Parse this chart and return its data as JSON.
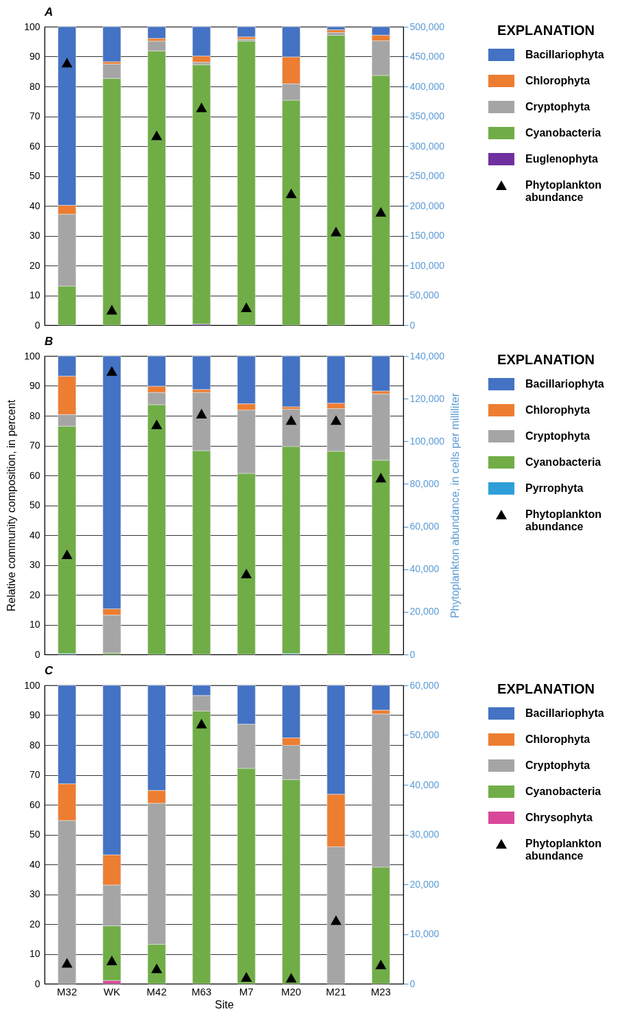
{
  "chart_data": [
    {
      "type": "bar",
      "stacked": true,
      "title": "A",
      "legend_title": "EXPLANATION",
      "legend": "right",
      "grid": "y",
      "tick_labels": "y",
      "marker": "triangle",
      "categories": [
        null,
        null,
        null,
        null,
        null,
        null,
        null,
        null
      ],
      "series": [
        {
          "name": "Euglenophyta",
          "color": "#7030a0",
          "values": [
            null,
            null,
            null,
            0.4,
            null,
            null,
            null,
            null
          ]
        },
        {
          "name": "Cyanobacteria",
          "color": "#70ad47",
          "values": [
            13.1,
            82.7,
            91.9,
            86.9,
            95.2,
            75.4,
            97.1,
            83.7
          ]
        },
        {
          "name": "Cryptophyta",
          "color": "#a5a5a5",
          "values": [
            24.1,
            4.8,
            3.3,
            0.8,
            0.6,
            5.5,
            1.0,
            11.6
          ]
        },
        {
          "name": "Chlorophyta",
          "color": "#ed7d31",
          "values": [
            3.0,
            0.8,
            0.9,
            2.1,
            0.8,
            9.0,
            0.9,
            1.9
          ]
        },
        {
          "name": "Bacillariophyta",
          "color": "#4472c4",
          "values": [
            59.8,
            11.7,
            3.9,
            9.8,
            3.4,
            10.1,
            1.0,
            2.8
          ]
        },
        {
          "name": "Phytoplankton abundance",
          "type": "scatter",
          "axis": "y2",
          "color": "#000000",
          "values": [
            440000,
            26000,
            318000,
            365000,
            30000,
            221000,
            157000,
            190000
          ]
        }
      ],
      "ylim": [
        0,
        100
      ],
      "yticks": [
        0,
        10,
        20,
        30,
        40,
        50,
        60,
        70,
        80,
        90,
        100
      ],
      "y2lim": [
        0,
        500000
      ],
      "y2ticks": [
        {
          "value": 0,
          "label": "0"
        },
        {
          "value": 50000,
          "label": "50,000"
        },
        {
          "value": 100000,
          "label": "100,000"
        },
        {
          "value": 150000,
          "label": "150,000"
        },
        {
          "value": 200000,
          "label": "200,000"
        },
        {
          "value": 250000,
          "label": "250,000"
        },
        {
          "value": 300000,
          "label": "300,000"
        },
        {
          "value": 350000,
          "label": "350,000"
        },
        {
          "value": 400000,
          "label": "400,000"
        },
        {
          "value": 450000,
          "label": "450,000"
        },
        {
          "value": 500000,
          "label": "500,000"
        }
      ]
    },
    {
      "type": "bar",
      "stacked": true,
      "title": "B",
      "legend_title": "EXPLANATION",
      "legend": "right",
      "grid": "y",
      "tick_labels": "y",
      "marker": "triangle",
      "ylabel": "Relative community composition, in percent",
      "y2label": "Phytoplankton abundance, in cells per milliliter",
      "categories": [
        null,
        null,
        null,
        null,
        null,
        null,
        null,
        null
      ],
      "series": [
        {
          "name": "Pyrrophyta",
          "color": "#2e9fd9",
          "values": [
            0.3,
            null,
            null,
            null,
            null,
            0.3,
            null,
            null
          ]
        },
        {
          "name": "Cyanobacteria",
          "color": "#70ad47",
          "values": [
            76.2,
            0.5,
            83.7,
            68.3,
            60.7,
            69.4,
            68.1,
            65.1
          ]
        },
        {
          "name": "Cryptophyta",
          "color": "#a5a5a5",
          "values": [
            3.9,
            12.7,
            4.1,
            19.5,
            21.2,
            12.5,
            14.3,
            22.2
          ]
        },
        {
          "name": "Chlorophyta",
          "color": "#ed7d31",
          "values": [
            12.9,
            2.1,
            2.1,
            1.0,
            2.1,
            0.8,
            1.8,
            1.0
          ]
        },
        {
          "name": "Bacillariophyta",
          "color": "#4472c4",
          "values": [
            6.7,
            84.7,
            10.1,
            11.2,
            16.0,
            17.0,
            15.8,
            11.7
          ]
        },
        {
          "name": "Phytoplankton abundance",
          "type": "scatter",
          "axis": "y2",
          "color": "#000000",
          "values": [
            47000,
            133000,
            108000,
            113000,
            38000,
            110000,
            110000,
            83000
          ]
        }
      ],
      "ylim": [
        0,
        100
      ],
      "yticks": [
        0,
        10,
        20,
        30,
        40,
        50,
        60,
        70,
        80,
        90,
        100
      ],
      "y2lim": [
        0,
        140000
      ],
      "y2ticks": [
        {
          "value": 0,
          "label": "0"
        },
        {
          "value": 20000,
          "label": "20,000"
        },
        {
          "value": 40000,
          "label": "40,000"
        },
        {
          "value": 60000,
          "label": "60,000"
        },
        {
          "value": 80000,
          "label": "80,000"
        },
        {
          "value": 100000,
          "label": "100,000"
        },
        {
          "value": 120000,
          "label": "120,000"
        },
        {
          "value": 140000,
          "label": "140,000"
        }
      ]
    },
    {
      "type": "bar",
      "stacked": true,
      "title": "C",
      "legend_title": "EXPLANATION",
      "legend": "right",
      "grid": "y",
      "marker": "triangle",
      "xlabel": "Site",
      "categories": [
        "M32",
        "WK",
        "M42",
        "M63",
        "M7",
        "M20",
        "M21",
        "M23"
      ],
      "series": [
        {
          "name": "Chrysophyta",
          "color": "#d9479b",
          "values": [
            null,
            1.1,
            null,
            null,
            null,
            null,
            null,
            null
          ]
        },
        {
          "name": "Cyanobacteria",
          "color": "#70ad47",
          "values": [
            null,
            18.3,
            13.2,
            91.4,
            72.2,
            68.4,
            null,
            39.1
          ]
        },
        {
          "name": "Cryptophyta",
          "color": "#a5a5a5",
          "values": [
            54.7,
            13.7,
            47.3,
            5.2,
            14.8,
            11.5,
            45.9,
            51.3
          ]
        },
        {
          "name": "Chlorophyta",
          "color": "#ed7d31",
          "values": [
            12.3,
            10.1,
            4.3,
            null,
            null,
            2.5,
            17.6,
            1.3
          ]
        },
        {
          "name": "Bacillariophyta",
          "color": "#4472c4",
          "values": [
            33.0,
            56.8,
            35.2,
            3.4,
            13.0,
            17.6,
            36.5,
            8.3
          ]
        },
        {
          "name": "Phytoplankton abundance",
          "type": "scatter",
          "axis": "y2",
          "color": "#000000",
          "values": [
            4200,
            4700,
            3100,
            52300,
            1400,
            1200,
            12800,
            3900
          ]
        }
      ],
      "ylim": [
        0,
        100
      ],
      "yticks": [
        0,
        10,
        20,
        30,
        40,
        50,
        60,
        70,
        80,
        90,
        100
      ],
      "y2lim": [
        0,
        60000
      ],
      "y2ticks": [
        {
          "value": 0,
          "label": "0"
        },
        {
          "value": 10000,
          "label": "10,000"
        },
        {
          "value": 20000,
          "label": "20,000"
        },
        {
          "value": 30000,
          "label": "30,000"
        },
        {
          "value": 40000,
          "label": "40,000"
        },
        {
          "value": 50000,
          "label": "50,000"
        },
        {
          "value": 60000,
          "label": "60,000"
        }
      ]
    }
  ]
}
